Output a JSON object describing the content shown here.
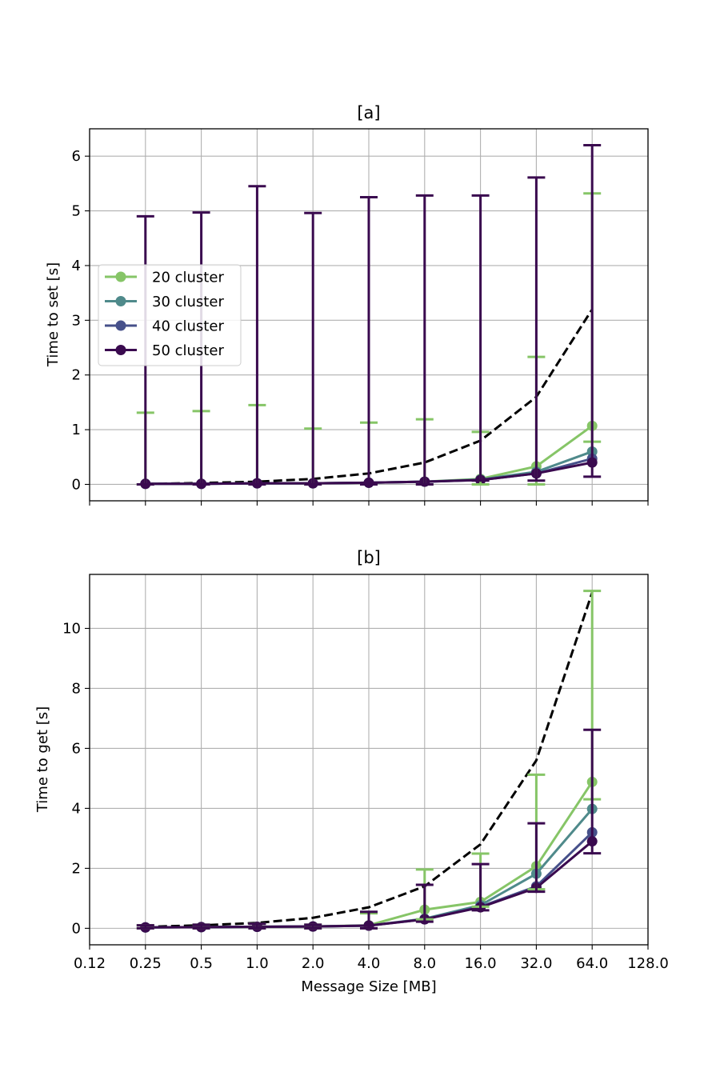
{
  "chart_data": [
    {
      "type": "line",
      "title": "[a]",
      "xlabel": "",
      "ylabel": "Time to set [s]",
      "x_scale": "log2",
      "xlim": [
        0.125,
        128.0
      ],
      "ylim": [
        -0.3,
        6.5
      ],
      "yticks": [
        0,
        1,
        2,
        3,
        4,
        5,
        6
      ],
      "grid": true,
      "legend_position": "center-left",
      "x": [
        0.25,
        0.5,
        1.0,
        2.0,
        4.0,
        8.0,
        16.0,
        32.0,
        64.0
      ],
      "reference_line": {
        "style": "dashed",
        "color": "#000000",
        "values": [
          0.01,
          0.025,
          0.05,
          0.1,
          0.2,
          0.4,
          0.8,
          1.6,
          3.2
        ]
      },
      "series": [
        {
          "name": "20 cluster",
          "color": "#86c567",
          "values": [
            0.01,
            0.01,
            0.02,
            0.02,
            0.03,
            0.05,
            0.1,
            0.33,
            1.07
          ],
          "err_upper": [
            1.31,
            1.34,
            1.45,
            1.02,
            1.13,
            1.19,
            0.96,
            2.33,
            5.32
          ],
          "err_lower": [
            0.0,
            0.0,
            0.0,
            0.0,
            0.0,
            0.0,
            0.0,
            0.0,
            0.78
          ]
        },
        {
          "name": "30 cluster",
          "color": "#4f8a8b",
          "values": [
            0.01,
            0.01,
            0.02,
            0.02,
            0.03,
            0.05,
            0.09,
            0.23,
            0.6
          ],
          "err_upper": [],
          "err_lower": []
        },
        {
          "name": "40 cluster",
          "color": "#46508a",
          "values": [
            0.01,
            0.01,
            0.02,
            0.02,
            0.03,
            0.05,
            0.08,
            0.2,
            0.47
          ],
          "err_upper": [],
          "err_lower": []
        },
        {
          "name": "50 cluster",
          "color": "#3a0a4f",
          "values": [
            0.01,
            0.01,
            0.02,
            0.02,
            0.03,
            0.05,
            0.08,
            0.2,
            0.4
          ],
          "err_upper": [
            4.9,
            4.97,
            5.45,
            4.96,
            5.25,
            5.28,
            5.28,
            5.61,
            6.2
          ],
          "err_lower": [
            0.0,
            0.0,
            0.0,
            0.0,
            0.0,
            0.0,
            0.07,
            0.07,
            0.14
          ]
        }
      ]
    },
    {
      "type": "line",
      "title": "[b]",
      "xlabel": "Message Size [MB]",
      "ylabel": "Time to get [s]",
      "x_scale": "log2",
      "xlim": [
        0.125,
        128.0
      ],
      "ylim": [
        -0.55,
        11.8
      ],
      "yticks": [
        0,
        2,
        4,
        6,
        8,
        10
      ],
      "grid": true,
      "x": [
        0.25,
        0.5,
        1.0,
        2.0,
        4.0,
        8.0,
        16.0,
        32.0,
        64.0
      ],
      "xtick_labels": [
        "0.12",
        "0.25",
        "0.5",
        "1.0",
        "2.0",
        "4.0",
        "8.0",
        "16.0",
        "32.0",
        "64.0",
        "128.0"
      ],
      "reference_line": {
        "style": "dashed",
        "color": "#000000",
        "values": [
          0.05,
          0.1,
          0.18,
          0.35,
          0.7,
          1.4,
          2.8,
          5.6,
          11.2
        ]
      },
      "series": [
        {
          "name": "20 cluster",
          "color": "#86c567",
          "values": [
            0.03,
            0.04,
            0.05,
            0.06,
            0.1,
            0.62,
            0.88,
            2.07,
            4.88
          ],
          "err_upper": [
            0.1,
            0.12,
            0.15,
            0.12,
            0.5,
            1.96,
            2.49,
            5.12,
            11.25
          ],
          "err_lower": [
            0.0,
            0.0,
            0.0,
            0.0,
            0.0,
            0.3,
            0.72,
            1.3,
            4.3
          ]
        },
        {
          "name": "30 cluster",
          "color": "#4f8a8b",
          "values": [
            0.03,
            0.04,
            0.05,
            0.06,
            0.09,
            0.32,
            0.77,
            1.82,
            3.98
          ],
          "err_upper": [],
          "err_lower": []
        },
        {
          "name": "40 cluster",
          "color": "#46508a",
          "values": [
            0.03,
            0.04,
            0.05,
            0.06,
            0.09,
            0.3,
            0.72,
            1.4,
            3.2
          ],
          "err_upper": [],
          "err_lower": []
        },
        {
          "name": "50 cluster",
          "color": "#3a0a4f",
          "values": [
            0.03,
            0.04,
            0.05,
            0.06,
            0.09,
            0.3,
            0.7,
            1.35,
            2.9
          ],
          "err_upper": [
            0.1,
            0.12,
            0.15,
            0.12,
            0.55,
            1.45,
            2.14,
            3.5,
            6.62
          ],
          "err_lower": [
            0.0,
            0.0,
            0.0,
            0.0,
            0.0,
            0.22,
            0.6,
            1.22,
            2.5
          ]
        }
      ]
    }
  ]
}
